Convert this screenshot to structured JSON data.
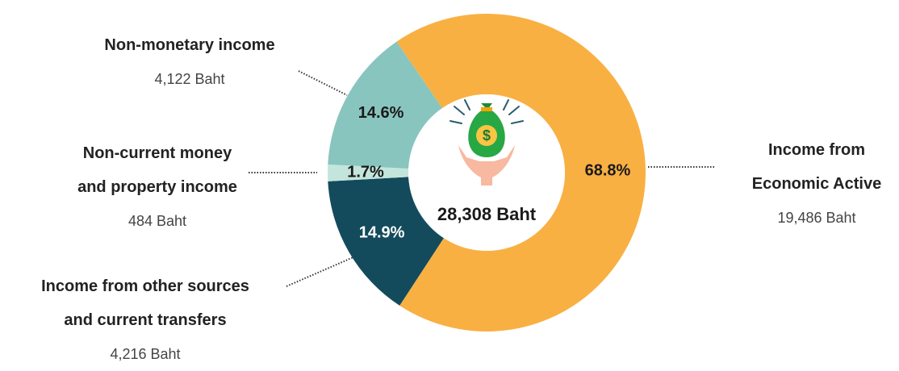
{
  "chart_data": {
    "type": "pie",
    "categories": [
      "Income from Economic Active",
      "Income from other sources and current transfers",
      "Non-current money and property income",
      "Non-monetary income"
    ],
    "values": [
      68.8,
      14.9,
      1.7,
      14.6
    ],
    "value_labels": [
      "68.8%",
      "14.9%",
      "1.7%",
      "14.6%"
    ],
    "amount_labels": [
      "19,486 Baht",
      "4,216 Baht",
      "484 Baht",
      "4,122 Baht"
    ],
    "colors": [
      "#f9b042",
      "#134b5c",
      "#c3e5dc",
      "#88c5bf"
    ],
    "label_colors": [
      "#1a1a1a",
      "#ffffff",
      "#1a1a1a",
      "#1a1a1a"
    ],
    "center_label": "28,308 Baht",
    "donut": true
  }
}
